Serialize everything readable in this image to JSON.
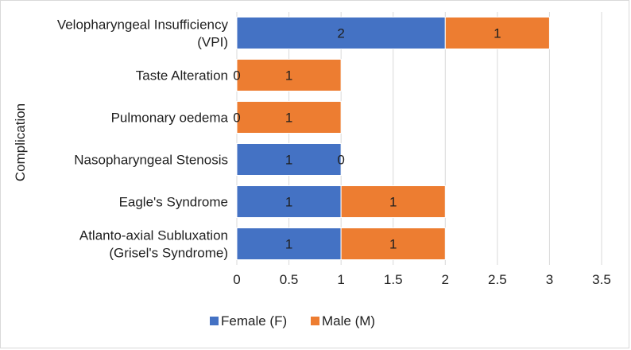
{
  "chart_data": {
    "type": "bar",
    "orientation": "horizontal",
    "stacked": true,
    "categories": [
      "Velopharyngeal Insufficiency (VPI)",
      "Taste Alteration",
      "Pulmonary oedema",
      "Nasopharyngeal Stenosis",
      "Eagle's Syndrome",
      "Atlanto-axial Subluxation (Grisel's Syndrome)"
    ],
    "category_lines": [
      [
        "Velopharyngeal Insufficiency",
        "(VPI)"
      ],
      [
        "Taste Alteration"
      ],
      [
        "Pulmonary oedema"
      ],
      [
        "Nasopharyngeal Stenosis"
      ],
      [
        "Eagle's Syndrome"
      ],
      [
        "Atlanto-axial Subluxation",
        "(Grisel's Syndrome)"
      ]
    ],
    "series": [
      {
        "name": "Female (F)",
        "color": "#4472c4",
        "values": [
          2,
          0,
          0,
          1,
          1,
          1
        ]
      },
      {
        "name": "Male (M)",
        "color": "#ed7d31",
        "values": [
          1,
          1,
          1,
          0,
          1,
          1
        ]
      }
    ],
    "xlabel": "",
    "ylabel": "Complication",
    "xlim": [
      0,
      3.5
    ],
    "xticks": [
      "0",
      "0.5",
      "1",
      "1.5",
      "2",
      "2.5",
      "3",
      "3.5"
    ],
    "grid": "vertical",
    "legend_position": "bottom"
  }
}
